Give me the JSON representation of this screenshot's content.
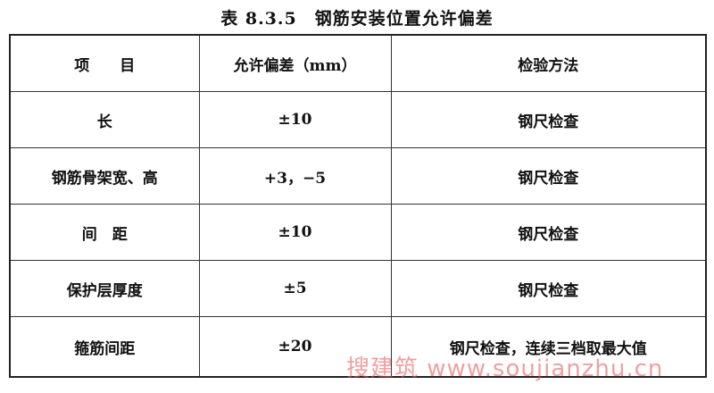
{
  "header": {
    "title": "表 8.3.5　钢筋安装位置允许偏差"
  },
  "table": {
    "columns": [
      "项　　目",
      "允许偏差（mm）",
      "检验方法"
    ],
    "rows": [
      [
        "长",
        "±10",
        "钢尺检查"
      ],
      [
        "钢筋骨架宽、高",
        "+3，−5",
        "钢尺检查"
      ],
      [
        "间　距",
        "±10",
        "钢尺检查"
      ],
      [
        "保护层厚度",
        "±5",
        "钢尺检查"
      ],
      [
        "箍筋间距",
        "±20",
        "钢尺检查，连续三档取最大值"
      ]
    ]
  },
  "watermark": "搜建筑 www.soujianzhu.cn"
}
